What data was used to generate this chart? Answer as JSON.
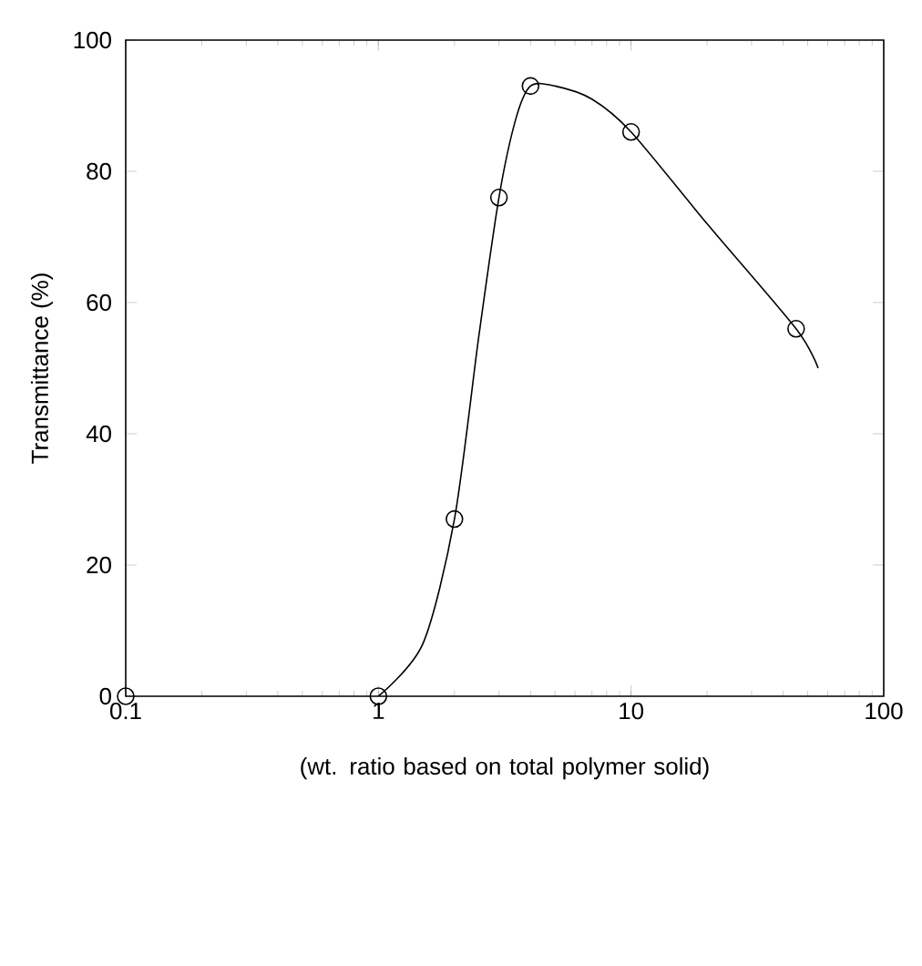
{
  "chart_data": {
    "type": "scatter",
    "xlabel": "(wt. ratio based on total polymer solid)",
    "ylabel": "Transmittance (%)",
    "log": "x",
    "xlim": [
      0.1,
      100
    ],
    "ylim": [
      0,
      100
    ],
    "xticks": [
      0.1,
      1,
      10,
      100
    ],
    "yticks": [
      0,
      20,
      40,
      60,
      80,
      100
    ],
    "grid": false,
    "series": [
      {
        "type": "line",
        "color": "#000000",
        "marker": "none",
        "x": [
          1,
          1.5,
          2,
          2.5,
          3,
          3.5,
          4,
          5,
          7,
          10,
          20,
          45,
          55
        ],
        "values": [
          0,
          8,
          27,
          55,
          76,
          88,
          93,
          93,
          91,
          86,
          72,
          56,
          50
        ]
      },
      {
        "color": "#000000",
        "marker": "circle",
        "x": [
          0.1,
          1,
          2,
          3,
          4,
          10,
          45
        ],
        "values": [
          0,
          0,
          27,
          76,
          93,
          86,
          56
        ]
      }
    ]
  }
}
